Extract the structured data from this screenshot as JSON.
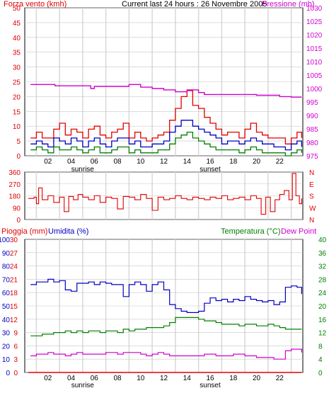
{
  "header": {
    "left_title": "Forza vento (kmh)",
    "center_title": "Current last 24 hours : 26 Novembre 2005",
    "right_title": "Pressione (mb)"
  },
  "middle_header": {
    "left_title1": "Pioggia (mm)",
    "left_title2": "Umidita (%)",
    "right_title1": "Temperatura (°C)",
    "right_title2": "Dew Point"
  },
  "colors": {
    "wind_axis": "#e00000",
    "pressure": "#d000d0",
    "wind_gust": "#e00000",
    "wind_avg": "#0000c0",
    "wind_min": "#008000",
    "direction": "#e00000",
    "humidity": "#0000c0",
    "temperature": "#008000",
    "dewpoint": "#d000d0",
    "rain": "#e00000",
    "humidity_axis": "#0000c0"
  },
  "chart_data": [
    {
      "type": "line",
      "title": "Forza vento (kmh) / Pressione (mb)",
      "x_ticks": [
        "02",
        "04",
        "06",
        "08",
        "10",
        "12",
        "14",
        "16",
        "18",
        "20",
        "22"
      ],
      "sun_labels": [
        "sunrise",
        "sunset"
      ],
      "left_axis": {
        "label": "Forza vento (kmh)",
        "ticks": [
          0,
          5,
          10,
          15,
          20,
          25,
          30,
          35,
          40,
          45,
          50
        ],
        "range": [
          0,
          50
        ]
      },
      "right_axis": {
        "label": "Pressione (mb)",
        "ticks": [
          975,
          980,
          985,
          990,
          995,
          1000,
          1005,
          1010,
          1015,
          1020,
          1025,
          1030
        ],
        "range": [
          975,
          1030
        ]
      },
      "series": [
        {
          "name": "Pressione (mb)",
          "x": [
            0.5,
            2.4,
            2.6,
            5.5,
            5.7,
            6.0,
            7.0,
            8.5,
            9.0,
            9.6,
            10.0,
            10.6,
            11.0,
            12.0,
            13.0,
            13.6,
            14.0,
            15.0,
            15.5,
            16.0,
            17.0,
            18.0,
            19.0,
            20.0,
            21.0,
            22.0,
            23.0,
            23.9
          ],
          "y": [
            1001.5,
            1001.5,
            1001.0,
            1001.0,
            1000.0,
            1000.8,
            1000.8,
            1000.8,
            1001.5,
            1001.5,
            1000.5,
            1000.5,
            1000.0,
            999.5,
            998.8,
            998.8,
            999.5,
            998.5,
            997.8,
            997.8,
            997.8,
            997.8,
            997.8,
            997.5,
            997.5,
            997.0,
            996.8,
            996.8
          ]
        },
        {
          "x": [
            0.5,
            1.0,
            1.5,
            2.0,
            2.5,
            3.0,
            3.5,
            4.0,
            4.5,
            5.0,
            5.5,
            6.0,
            6.5,
            7.0,
            7.5,
            8.0,
            8.5,
            9.0,
            9.5,
            10.0,
            10.5,
            11.0,
            11.5,
            12.0,
            12.5,
            13.0,
            13.5,
            14.0,
            14.5,
            15.0,
            15.5,
            16.0,
            16.5,
            17.0,
            17.5,
            18.0,
            18.5,
            19.0,
            19.5,
            20.0,
            20.5,
            21.0,
            21.5,
            22.0,
            22.5,
            23.0,
            23.5,
            23.9
          ],
          "y": [
            6,
            8,
            6,
            6,
            9,
            11,
            7,
            9,
            8,
            6,
            9,
            10,
            7,
            6,
            8,
            9,
            11,
            6,
            8,
            6,
            5,
            6,
            7,
            8,
            12,
            16,
            20,
            22,
            17,
            16,
            13,
            11,
            9,
            7,
            8,
            8,
            6,
            9,
            11,
            8,
            7,
            6,
            6,
            6,
            4,
            6,
            8,
            6
          ]
        },
        {
          "x": [
            0.5,
            1.0,
            1.5,
            2.0,
            2.5,
            3.0,
            3.5,
            4.0,
            4.5,
            5.0,
            5.5,
            6.0,
            6.5,
            7.0,
            7.5,
            8.0,
            8.5,
            9.0,
            9.5,
            10.0,
            10.5,
            11.0,
            11.5,
            12.0,
            12.5,
            13.0,
            13.5,
            14.0,
            14.5,
            15.0,
            15.5,
            16.0,
            16.5,
            17.0,
            17.5,
            18.0,
            18.5,
            19.0,
            19.5,
            20.0,
            20.5,
            21.0,
            21.5,
            22.0,
            22.5,
            23.0,
            23.5,
            23.9
          ],
          "y": [
            4,
            5,
            4,
            3,
            6,
            5,
            4,
            6,
            5,
            3,
            5,
            6,
            4,
            3,
            5,
            6,
            6,
            4,
            5,
            3,
            3,
            4,
            4,
            5,
            8,
            10,
            12,
            12,
            10,
            9,
            8,
            7,
            6,
            4,
            5,
            5,
            4,
            5,
            6,
            5,
            4,
            4,
            3,
            3,
            2,
            4,
            5,
            3
          ]
        },
        {
          "x": [
            0.5,
            1.0,
            1.5,
            2.0,
            2.5,
            3.0,
            3.5,
            4.0,
            4.5,
            5.0,
            5.5,
            6.0,
            6.5,
            7.0,
            7.5,
            8.0,
            8.5,
            9.0,
            9.5,
            10.0,
            10.5,
            11.0,
            11.5,
            12.0,
            12.5,
            13.0,
            13.5,
            14.0,
            14.5,
            15.0,
            15.5,
            16.0,
            16.5,
            17.0,
            17.5,
            18.0,
            18.5,
            19.0,
            19.5,
            20.0,
            20.5,
            21.0,
            21.5,
            22.0,
            22.5,
            23.0,
            23.5,
            23.9
          ],
          "y": [
            2,
            3,
            2,
            1,
            3,
            2,
            2,
            3,
            2,
            1,
            2,
            3,
            1,
            1,
            2,
            3,
            3,
            1,
            2,
            1,
            1,
            1,
            2,
            2,
            4,
            6,
            7,
            8,
            6,
            5,
            4,
            3,
            2,
            2,
            2,
            2,
            1,
            2,
            3,
            2,
            1,
            1,
            1,
            1,
            0,
            1,
            2,
            1
          ]
        }
      ]
    },
    {
      "type": "line",
      "title": "Direzione vento",
      "left_axis": {
        "ticks": [
          0,
          90,
          180,
          270,
          360
        ],
        "range": [
          0,
          360
        ]
      },
      "right_axis": {
        "ticks": [
          "N",
          "W",
          "S",
          "E",
          "N"
        ]
      },
      "series": [
        {
          "x": [
            0.3,
            0.8,
            1.0,
            1.2,
            1.5,
            2.0,
            2.5,
            3.0,
            3.4,
            3.8,
            4.2,
            4.6,
            5.0,
            5.5,
            6.0,
            6.5,
            7.0,
            7.5,
            8.0,
            8.5,
            9.0,
            9.5,
            10.0,
            10.5,
            11.0,
            11.5,
            12.0,
            12.5,
            13.0,
            13.5,
            14.0,
            14.5,
            15.0,
            15.5,
            16.0,
            16.5,
            17.0,
            17.5,
            18.0,
            18.5,
            19.0,
            19.5,
            20.0,
            20.4,
            20.8,
            21.2,
            21.6,
            22.0,
            22.4,
            22.8,
            23.1,
            23.4,
            23.7,
            23.9
          ],
          "y": [
            160,
            170,
            120,
            240,
            150,
            180,
            130,
            170,
            60,
            175,
            150,
            190,
            170,
            150,
            180,
            130,
            170,
            160,
            80,
            175,
            170,
            150,
            190,
            160,
            70,
            170,
            150,
            160,
            180,
            160,
            150,
            170,
            160,
            150,
            170,
            160,
            180,
            150,
            160,
            170,
            150,
            180,
            160,
            40,
            170,
            60,
            150,
            190,
            220,
            150,
            350,
            180,
            120,
            160
          ]
        }
      ]
    },
    {
      "type": "line",
      "title": "Pioggia (mm) / Umidita (%) / Temperatura (°C) / Dew Point",
      "x_ticks": [
        "02",
        "04",
        "06",
        "08",
        "10",
        "12",
        "14",
        "16",
        "18",
        "20",
        "22"
      ],
      "sun_labels": [
        "sunrise",
        "sunset"
      ],
      "left_axis_1": {
        "label": "Pioggia (mm)",
        "ticks": [
          0,
          3,
          6,
          9,
          12,
          15,
          18,
          21,
          24,
          27,
          30
        ]
      },
      "left_axis_2": {
        "label": "Umidita (%)",
        "ticks": [
          0,
          10,
          20,
          30,
          40,
          50,
          60,
          70,
          80,
          90,
          100
        ]
      },
      "right_axis": {
        "label": "Temperatura (°C)",
        "ticks": [
          0,
          4,
          8,
          12,
          16,
          20,
          24,
          28,
          32,
          36,
          40
        ]
      },
      "series": [
        {
          "name": "Umidita (%)",
          "x": [
            0.5,
            1.0,
            1.5,
            2.0,
            2.5,
            3.0,
            3.5,
            4.0,
            4.5,
            5.0,
            5.5,
            6.0,
            6.5,
            7.0,
            7.5,
            8.0,
            8.5,
            9.0,
            9.5,
            10.0,
            10.5,
            11.0,
            11.5,
            12.0,
            12.5,
            13.0,
            13.5,
            14.0,
            14.5,
            15.0,
            15.5,
            16.0,
            16.5,
            17.0,
            17.5,
            18.0,
            18.5,
            19.0,
            19.5,
            20.0,
            20.5,
            21.0,
            21.5,
            22.0,
            22.5,
            23.0,
            23.5,
            23.9
          ],
          "y": [
            66,
            68,
            68,
            70,
            68,
            69,
            62,
            61,
            67,
            67,
            68,
            66,
            68,
            67,
            66,
            66,
            57,
            66,
            68,
            66,
            61,
            66,
            68,
            62,
            51,
            48,
            46,
            45,
            45,
            46,
            52,
            56,
            54,
            55,
            53,
            55,
            54,
            57,
            55,
            54,
            53,
            54,
            51,
            53,
            64,
            65,
            64,
            59
          ]
        },
        {
          "name": "Temperatura (°C)",
          "x": [
            0.5,
            1.0,
            1.5,
            2.0,
            2.5,
            3.0,
            3.5,
            4.0,
            4.5,
            5.0,
            5.5,
            6.0,
            6.5,
            7.0,
            7.5,
            8.0,
            8.5,
            9.0,
            9.5,
            10.0,
            10.5,
            11.0,
            11.5,
            12.0,
            12.5,
            13.0,
            13.5,
            14.0,
            14.5,
            15.0,
            15.5,
            16.0,
            16.5,
            17.0,
            17.5,
            18.0,
            18.5,
            19.0,
            19.5,
            20.0,
            20.5,
            21.0,
            21.5,
            22.0,
            22.5,
            23.0,
            23.5,
            23.9
          ],
          "y": [
            11.0,
            11.0,
            11.5,
            11.5,
            12.0,
            12.0,
            12.5,
            12.0,
            12.5,
            12.0,
            12.5,
            12.5,
            12.0,
            12.5,
            12.5,
            12.0,
            13.0,
            12.5,
            13.0,
            13.0,
            13.5,
            13.5,
            13.5,
            14.0,
            15.0,
            16.5,
            16.5,
            16.5,
            16.5,
            16.0,
            15.5,
            15.5,
            15.0,
            14.5,
            14.5,
            14.5,
            14.0,
            14.5,
            14.5,
            14.0,
            14.0,
            14.5,
            14.0,
            13.5,
            13.0,
            13.0,
            13.0,
            13.0
          ]
        },
        {
          "name": "Dew Point",
          "x": [
            0.5,
            1.0,
            1.5,
            2.0,
            2.5,
            3.0,
            3.5,
            4.0,
            4.5,
            5.0,
            5.5,
            6.0,
            6.5,
            7.0,
            7.5,
            8.0,
            8.5,
            9.0,
            9.5,
            10.0,
            10.5,
            11.0,
            11.5,
            12.0,
            12.5,
            13.0,
            13.5,
            14.0,
            14.5,
            15.0,
            15.5,
            16.0,
            16.5,
            17.0,
            17.5,
            18.0,
            18.5,
            19.0,
            19.5,
            20.0,
            20.5,
            21.0,
            21.5,
            22.0,
            22.5,
            23.0,
            23.5,
            23.9
          ],
          "y": [
            5.0,
            5.5,
            5.5,
            6.0,
            5.5,
            5.5,
            5.0,
            5.5,
            6.0,
            5.5,
            5.5,
            5.5,
            5.5,
            6.0,
            6.0,
            5.5,
            6.0,
            6.0,
            6.0,
            5.5,
            5.0,
            5.5,
            6.0,
            5.5,
            5.0,
            5.0,
            5.0,
            5.0,
            5.0,
            5.0,
            5.5,
            5.5,
            5.0,
            5.0,
            5.0,
            5.5,
            5.5,
            5.0,
            5.0,
            4.5,
            4.5,
            4.5,
            4.0,
            4.0,
            6.5,
            7.0,
            7.0,
            6.0
          ]
        },
        {
          "name": "Pioggia (mm)",
          "x": [
            0.3,
            23.9
          ],
          "y": [
            0,
            0
          ]
        }
      ]
    }
  ]
}
